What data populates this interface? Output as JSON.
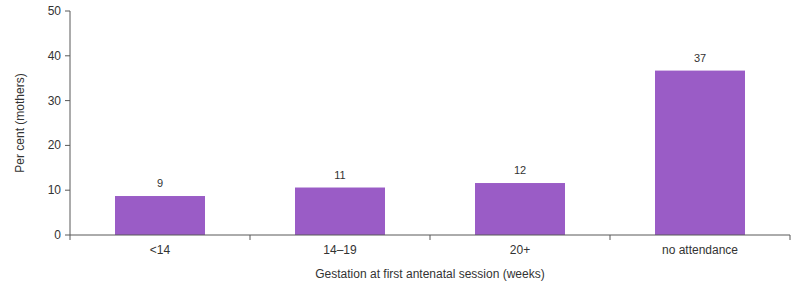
{
  "chart_data": {
    "type": "bar",
    "x_label": "Gestation at first antenatal session (weeks)",
    "y_label": "Per cent (mothers)",
    "categories": [
      "<14",
      "14–19",
      "20+",
      "no attendance"
    ],
    "values": [
      8.7,
      10.6,
      11.6,
      36.7
    ],
    "value_labels": [
      "9",
      "11",
      "12",
      "37"
    ],
    "color": "#9a5cc6",
    "ylim": [
      0,
      50
    ],
    "yticks": [
      0,
      10,
      20,
      30,
      40,
      50
    ],
    "grid": false,
    "data_labels": true
  }
}
